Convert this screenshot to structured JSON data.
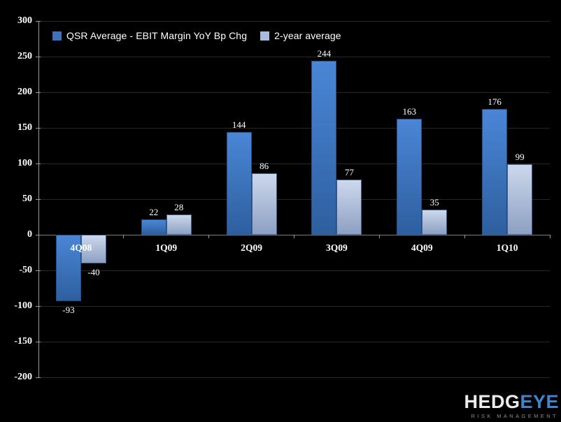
{
  "chart_data": {
    "type": "bar",
    "title": "",
    "categories": [
      "4Q08",
      "1Q09",
      "2Q09",
      "3Q09",
      "4Q09",
      "1Q10"
    ],
    "series": [
      {
        "name": "QSR Average - EBIT Margin YoY Bp Chg",
        "values": [
          -93,
          22,
          144,
          244,
          163,
          176
        ],
        "color_top": "#4a86d6",
        "color_bottom": "#2e5f9f",
        "border": "#1f4e8c",
        "legend_swatch": "#3e72ba"
      },
      {
        "name": "2-year average",
        "values": [
          -40,
          28,
          86,
          77,
          35,
          99
        ],
        "color_top": "#ccd8ec",
        "color_bottom": "#8da0c3",
        "border": "#42608f",
        "legend_swatch": "#a7bbdd"
      }
    ],
    "xlabel": "",
    "ylabel": "",
    "ylim": [
      -200,
      300
    ],
    "yticks": [
      300,
      250,
      200,
      150,
      100,
      50,
      0,
      -50,
      -100,
      -150,
      -200
    ],
    "grid": true,
    "legend_position": "top",
    "colors": {
      "background": "#000000",
      "gridline": "#282828",
      "zero_line": "#7e7e7e",
      "axis": "#9a9a9a",
      "text": "#ffffff"
    }
  },
  "logo": {
    "text_primary": "HEDG",
    "text_accent": "EYE",
    "subtitle": "RISK MANAGEMENT"
  }
}
